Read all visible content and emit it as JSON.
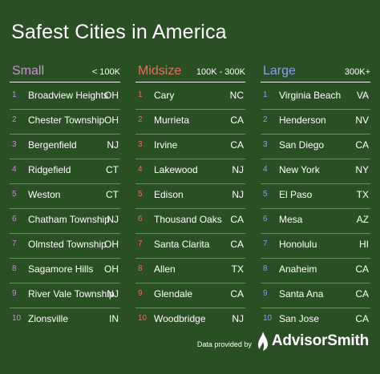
{
  "title": "Safest Cities in America",
  "colors": {
    "background": "#2b4f25",
    "small_accent": "#c98fd7",
    "midsize_accent": "#f06a5a",
    "large_accent": "#8c9cf2"
  },
  "columns": [
    {
      "name": "Small",
      "range": "< 100K",
      "rows": [
        {
          "rank": "1",
          "city": "Broadview Heights",
          "state": "OH"
        },
        {
          "rank": "2",
          "city": "Chester Township",
          "state": "OH"
        },
        {
          "rank": "3",
          "city": "Bergenfield",
          "state": "NJ"
        },
        {
          "rank": "4",
          "city": "Ridgefield",
          "state": "CT"
        },
        {
          "rank": "5",
          "city": "Weston",
          "state": "CT"
        },
        {
          "rank": "6",
          "city": "Chatham Township",
          "state": "NJ"
        },
        {
          "rank": "7",
          "city": "Olmsted Township",
          "state": "OH"
        },
        {
          "rank": "8",
          "city": "Sagamore Hills",
          "state": "OH"
        },
        {
          "rank": "9",
          "city": "River Vale Township",
          "state": "NJ"
        },
        {
          "rank": "10",
          "city": "Zionsville",
          "state": "IN"
        }
      ]
    },
    {
      "name": "Midsize",
      "range": "100K - 300K",
      "rows": [
        {
          "rank": "1",
          "city": "Cary",
          "state": "NC"
        },
        {
          "rank": "2",
          "city": "Murrieta",
          "state": "CA"
        },
        {
          "rank": "3",
          "city": "Irvine",
          "state": "CA"
        },
        {
          "rank": "4",
          "city": "Lakewood",
          "state": "NJ"
        },
        {
          "rank": "5",
          "city": "Edison",
          "state": "NJ"
        },
        {
          "rank": "6",
          "city": "Thousand Oaks",
          "state": "CA"
        },
        {
          "rank": "7",
          "city": "Santa Clarita",
          "state": "CA"
        },
        {
          "rank": "8",
          "city": "Allen",
          "state": "TX"
        },
        {
          "rank": "9",
          "city": "Glendale",
          "state": "CA"
        },
        {
          "rank": "10",
          "city": "Woodbridge",
          "state": "NJ"
        }
      ]
    },
    {
      "name": "Large",
      "range": "300K+",
      "rows": [
        {
          "rank": "1",
          "city": "Virginia Beach",
          "state": "VA"
        },
        {
          "rank": "2",
          "city": "Henderson",
          "state": "NV"
        },
        {
          "rank": "3",
          "city": "San Diego",
          "state": "CA"
        },
        {
          "rank": "4",
          "city": "New York",
          "state": "NY"
        },
        {
          "rank": "5",
          "city": "El Paso",
          "state": "TX"
        },
        {
          "rank": "6",
          "city": "Mesa",
          "state": "AZ"
        },
        {
          "rank": "7",
          "city": "Honolulu",
          "state": "HI"
        },
        {
          "rank": "8",
          "city": "Anaheim",
          "state": "CA"
        },
        {
          "rank": "9",
          "city": "Santa Ana",
          "state": "CA"
        },
        {
          "rank": "10",
          "city": "San Jose",
          "state": "CA"
        }
      ]
    }
  ],
  "footer": {
    "provided_by": "Data provided by",
    "brand": "AdvisorSmith",
    "logo_icon": "advisorsmith-logo-icon"
  }
}
